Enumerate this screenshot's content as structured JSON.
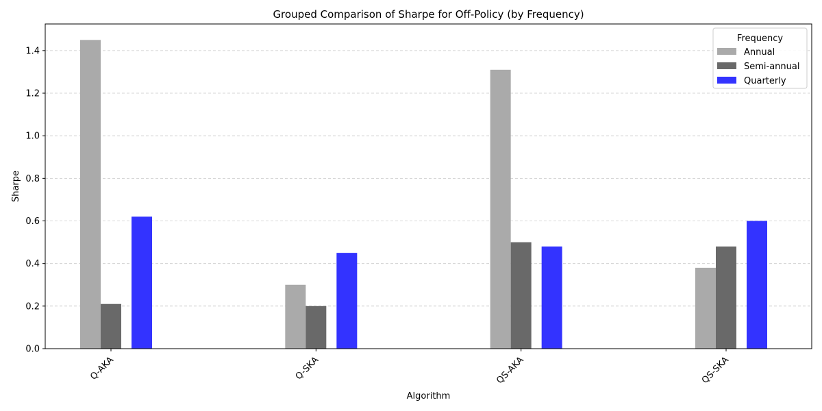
{
  "chart_data": {
    "type": "bar",
    "title": "Grouped Comparison of Sharpe for Off-Policy (by Frequency)",
    "xlabel": "Algorithm",
    "ylabel": "Sharpe",
    "categories": [
      "Q-AKA",
      "Q-SKA",
      "QS-AKA",
      "QS-SKA"
    ],
    "series": [
      {
        "name": "Annual",
        "color": "#aaaaaa",
        "values": [
          1.45,
          0.3,
          1.31,
          0.38
        ]
      },
      {
        "name": "Semi-annual",
        "color": "#696969",
        "values": [
          0.21,
          0.2,
          0.5,
          0.48
        ]
      },
      {
        "name": "Quarterly",
        "color": "#3333ff",
        "values": [
          0.62,
          0.45,
          0.48,
          0.6
        ]
      }
    ],
    "ylim": [
      0,
      1.525
    ],
    "yticks": [
      "0.0",
      "0.2",
      "0.4",
      "0.6",
      "0.8",
      "1.0",
      "1.2",
      "1.4"
    ],
    "grid": "y-dashed",
    "legend": {
      "title": "Frequency",
      "position": "top-right"
    }
  }
}
